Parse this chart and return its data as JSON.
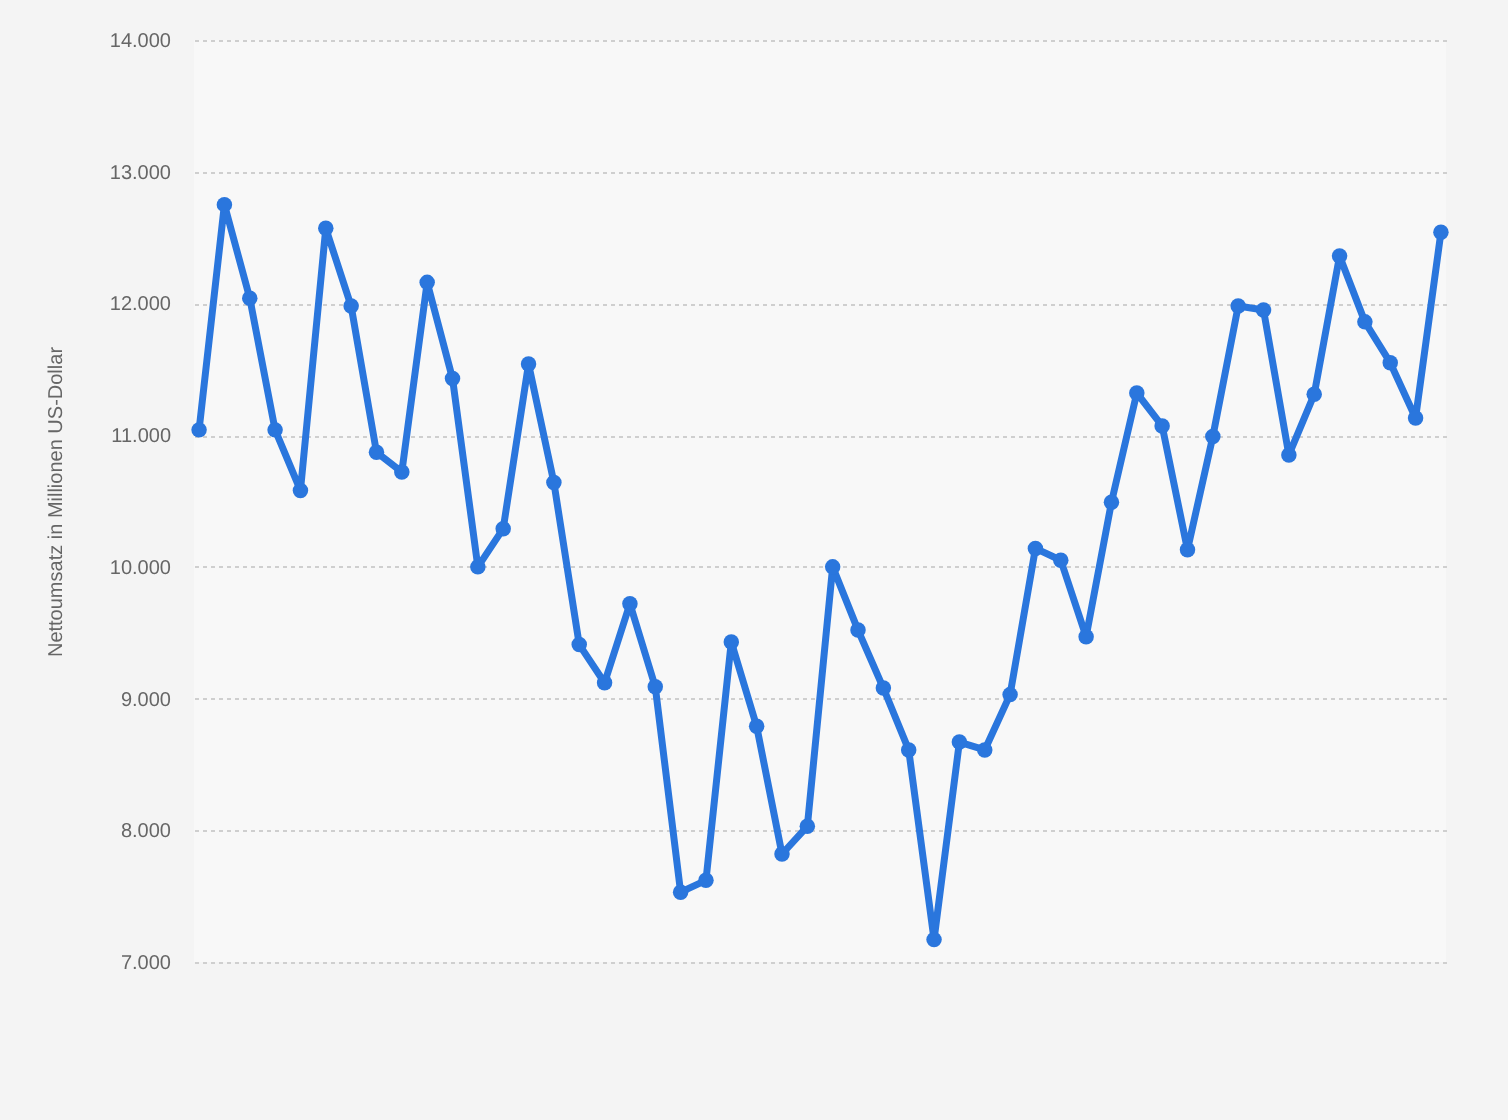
{
  "chart_data": {
    "type": "line",
    "ylabel": "Nettoumsatz in Millionen US-Dollar",
    "categories": [
      null,
      null,
      null,
      null,
      null,
      null,
      null,
      null,
      null,
      null,
      null,
      null,
      null,
      null,
      null,
      null,
      null,
      null,
      null,
      null,
      null,
      null,
      null,
      null,
      null,
      null,
      null,
      null,
      null,
      null,
      null,
      null,
      null,
      null,
      null,
      null,
      null,
      null,
      null,
      null,
      null,
      null,
      null,
      null,
      null,
      null,
      null,
      null,
      null,
      null
    ],
    "series": [
      {
        "color": "#2a76dd",
        "values": [
          11040,
          12750,
          12040,
          11040,
          10580,
          12570,
          11980,
          10870,
          10720,
          12160,
          11430,
          10000,
          10290,
          11540,
          10640,
          9410,
          9120,
          9720,
          9090,
          7530,
          7620,
          9430,
          8790,
          7820,
          8030,
          10000,
          9520,
          9080,
          8610,
          7170,
          8670,
          8610,
          9030,
          10140,
          10050,
          9470,
          10490,
          11320,
          11070,
          10130,
          10990,
          11980,
          11950,
          10850,
          11310,
          12360,
          11860,
          11550,
          11130,
          12540
        ]
      }
    ],
    "ylim": [
      7000,
      14000
    ],
    "yticks": [
      {
        "value": 7000,
        "label": "7.000"
      },
      {
        "value": 8000,
        "label": "8.000"
      },
      {
        "value": 9000,
        "label": "9.000"
      },
      {
        "value": 10000,
        "label": "10.000"
      },
      {
        "value": 11000,
        "label": "11.000"
      },
      {
        "value": 12000,
        "label": "12.000"
      },
      {
        "value": 13000,
        "label": "13.000"
      },
      {
        "value": 14000,
        "label": "14.000"
      }
    ],
    "grid": "y",
    "marker": "circle",
    "line_style": "solid"
  }
}
